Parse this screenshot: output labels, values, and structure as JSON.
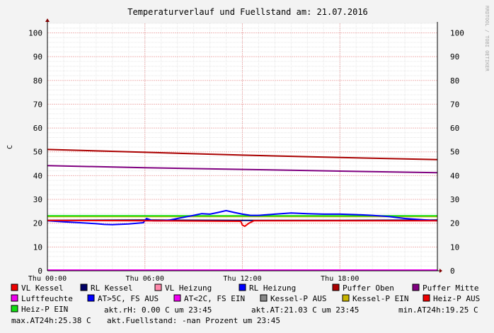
{
  "chart_data": {
    "type": "line",
    "title": "Temperaturverlauf und Fuellstand am: 21.07.2016",
    "watermark": "RRDTOOL / TOBI OETIKER",
    "ylabel": "C",
    "ylim": [
      0,
      104
    ],
    "yticks": [
      0,
      10,
      20,
      30,
      40,
      50,
      60,
      70,
      80,
      90,
      100
    ],
    "xlim": [
      0,
      24
    ],
    "xticks": [
      {
        "x": 0,
        "label": "Thu 00:00"
      },
      {
        "x": 6,
        "label": "Thu 06:00"
      },
      {
        "x": 12,
        "label": "Thu 12:00"
      },
      {
        "x": 18,
        "label": "Thu 18:00"
      }
    ],
    "grid": true,
    "series": [
      {
        "name": "Puffer Oben",
        "color": "#aa0000",
        "x": [
          0,
          6,
          12,
          18,
          24
        ],
        "y": [
          51.0,
          49.8,
          48.6,
          47.6,
          46.7
        ]
      },
      {
        "name": "Puffer Mitte",
        "color": "#800080",
        "x": [
          0,
          6,
          12,
          18,
          24
        ],
        "y": [
          44.2,
          43.3,
          42.6,
          41.9,
          41.2
        ]
      },
      {
        "name": "Kessel-P EIN",
        "color": "#c8b400",
        "x": [
          0,
          24
        ],
        "y": [
          22.8,
          22.8
        ]
      },
      {
        "name": "Heiz-P EIN",
        "color": "#11dd11",
        "x": [
          0,
          24
        ],
        "y": [
          23.1,
          23.1
        ]
      },
      {
        "name": "RL Kessel",
        "color": "#000066",
        "x": [
          0,
          6,
          12,
          18,
          24
        ],
        "y": [
          21.2,
          21.3,
          21.2,
          21.2,
          21.3
        ]
      },
      {
        "name": "RL Heizung",
        "color": "#0000ff",
        "x": [
          0,
          1,
          2,
          3,
          3.5,
          4,
          5,
          5.9,
          6.1,
          6.5,
          7,
          7.5,
          8,
          9,
          9.5,
          10,
          10.5,
          11,
          11.5,
          12,
          12.5,
          13,
          14,
          15,
          16,
          17,
          18,
          19,
          20,
          21,
          22,
          23,
          24
        ],
        "y": [
          21.0,
          20.6,
          20.2,
          19.8,
          19.5,
          19.4,
          19.7,
          20.2,
          22.0,
          21.0,
          21.0,
          21.3,
          22.0,
          23.3,
          24.0,
          23.8,
          24.5,
          25.3,
          24.5,
          23.8,
          23.3,
          23.3,
          23.8,
          24.3,
          24.0,
          23.8,
          23.8,
          23.6,
          23.3,
          22.8,
          22.0,
          21.5,
          21.0
        ]
      },
      {
        "name": "VL Kessel",
        "color": "#ee0000",
        "x": [
          0,
          6,
          11.9,
          12.0,
          12.15,
          12.4,
          12.7,
          18,
          24
        ],
        "y": [
          21.2,
          21.0,
          20.8,
          19.2,
          18.7,
          20.0,
          21.0,
          21.0,
          21.0
        ]
      },
      {
        "name": "Luftfeuchte",
        "color": "#ee00ee",
        "x": [
          0,
          24
        ],
        "y": [
          0.3,
          0.3
        ]
      }
    ]
  },
  "legend": [
    {
      "label": "VL Kessel",
      "color": "#ee0000"
    },
    {
      "label": "RL Kessel",
      "color": "#000066"
    },
    {
      "label": "VL Heizung",
      "color": "#ff88aa"
    },
    {
      "label": "RL Heizung",
      "color": "#0000ff"
    },
    {
      "label": "Puffer Oben",
      "color": "#aa0000"
    },
    {
      "label": "Puffer Mitte",
      "color": "#800080"
    },
    {
      "label": "Luftfeuchte",
      "color": "#ee00ee"
    },
    {
      "label": "AT>5C, FS AUS",
      "color": "#0000ff"
    },
    {
      "label": "AT<2C, FS EIN",
      "color": "#ee00ee"
    },
    {
      "label": "Kessel-P AUS",
      "color": "#888888"
    },
    {
      "label": "Kessel-P EIN",
      "color": "#c8b400"
    },
    {
      "label": "Heiz-P AUS",
      "color": "#ee0000"
    },
    {
      "label": "Heiz-P EIN",
      "color": "#11dd11"
    }
  ],
  "status": {
    "rh": "akt.rH: 0.00 C um 23:45",
    "at": "akt.AT:21.03 C um 23:45",
    "min": "min.AT24h:19.25 C",
    "max": "max.AT24h:25.38 C",
    "fill": "akt.Fuellstand: -nan Prozent um 23:45"
  }
}
